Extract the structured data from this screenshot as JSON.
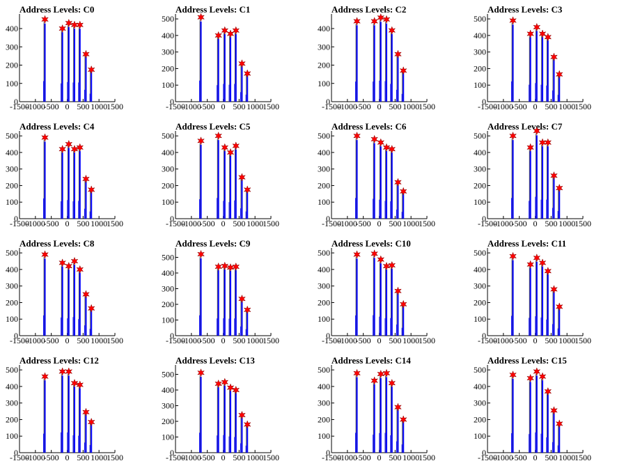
{
  "title_prefix": "Address Levels: ",
  "colors": {
    "histogram": "#0000ff",
    "peak_marker": "#ff0000",
    "marker_outline": "#800000",
    "axis": "#000000"
  },
  "axes": {
    "xlim": [
      -1500,
      1500
    ],
    "xticks": [
      "-1500",
      "-1000",
      "-500",
      "0",
      "500",
      "1000",
      "1500"
    ],
    "grid": false
  },
  "chart_data": [
    {
      "type": "bar",
      "title": "Address Levels: C0",
      "ylim": [
        0,
        480
      ],
      "yticks": [
        "0",
        "100",
        "200",
        "300",
        "400"
      ],
      "peaks": [
        {
          "x": -700,
          "y": 450
        },
        {
          "x": -150,
          "y": 400
        },
        {
          "x": 50,
          "y": 430
        },
        {
          "x": 230,
          "y": 420
        },
        {
          "x": 400,
          "y": 420
        },
        {
          "x": 590,
          "y": 260
        },
        {
          "x": 760,
          "y": 175
        }
      ]
    },
    {
      "type": "bar",
      "title": "Address Levels: C1",
      "ylim": [
        0,
        530
      ],
      "yticks": [
        "0",
        "100",
        "200",
        "300",
        "400",
        "500"
      ],
      "peaks": [
        {
          "x": -700,
          "y": 510
        },
        {
          "x": -150,
          "y": 400
        },
        {
          "x": 50,
          "y": 430
        },
        {
          "x": 230,
          "y": 410
        },
        {
          "x": 400,
          "y": 430
        },
        {
          "x": 590,
          "y": 230
        },
        {
          "x": 760,
          "y": 170
        }
      ]
    },
    {
      "type": "bar",
      "title": "Address Levels: C2",
      "ylim": [
        0,
        480
      ],
      "yticks": [
        "0",
        "100",
        "200",
        "300",
        "400"
      ],
      "peaks": [
        {
          "x": -700,
          "y": 440
        },
        {
          "x": -150,
          "y": 440
        },
        {
          "x": 50,
          "y": 460
        },
        {
          "x": 230,
          "y": 450
        },
        {
          "x": 400,
          "y": 390
        },
        {
          "x": 590,
          "y": 260
        },
        {
          "x": 760,
          "y": 170
        }
      ]
    },
    {
      "type": "bar",
      "title": "Address Levels: C3",
      "ylim": [
        0,
        530
      ],
      "yticks": [
        "0",
        "100",
        "200",
        "300",
        "400",
        "500"
      ],
      "peaks": [
        {
          "x": -700,
          "y": 490
        },
        {
          "x": -150,
          "y": 410
        },
        {
          "x": 50,
          "y": 450
        },
        {
          "x": 230,
          "y": 410
        },
        {
          "x": 400,
          "y": 390
        },
        {
          "x": 590,
          "y": 270
        },
        {
          "x": 760,
          "y": 165
        }
      ]
    },
    {
      "type": "bar",
      "title": "Address Levels: C4",
      "ylim": [
        0,
        530
      ],
      "yticks": [
        "0",
        "100",
        "200",
        "300",
        "400",
        "500"
      ],
      "peaks": [
        {
          "x": -700,
          "y": 490
        },
        {
          "x": -150,
          "y": 420
        },
        {
          "x": 50,
          "y": 450
        },
        {
          "x": 230,
          "y": 420
        },
        {
          "x": 400,
          "y": 430
        },
        {
          "x": 590,
          "y": 240
        },
        {
          "x": 760,
          "y": 175
        }
      ]
    },
    {
      "type": "bar",
      "title": "Address Levels: C5",
      "ylim": [
        0,
        530
      ],
      "yticks": [
        "0",
        "100",
        "200",
        "300",
        "400",
        "500"
      ],
      "peaks": [
        {
          "x": -700,
          "y": 470
        },
        {
          "x": -150,
          "y": 500
        },
        {
          "x": 50,
          "y": 430
        },
        {
          "x": 230,
          "y": 400
        },
        {
          "x": 400,
          "y": 440
        },
        {
          "x": 590,
          "y": 250
        },
        {
          "x": 760,
          "y": 175
        }
      ]
    },
    {
      "type": "bar",
      "title": "Address Levels: C6",
      "ylim": [
        0,
        530
      ],
      "yticks": [
        "0",
        "100",
        "200",
        "300",
        "400",
        "500"
      ],
      "peaks": [
        {
          "x": -700,
          "y": 500
        },
        {
          "x": -150,
          "y": 480
        },
        {
          "x": 50,
          "y": 460
        },
        {
          "x": 230,
          "y": 430
        },
        {
          "x": 400,
          "y": 420
        },
        {
          "x": 590,
          "y": 220
        },
        {
          "x": 760,
          "y": 165
        }
      ]
    },
    {
      "type": "bar",
      "title": "Address Levels: C7",
      "ylim": [
        0,
        530
      ],
      "yticks": [
        "0",
        "100",
        "200",
        "300",
        "400",
        "500"
      ],
      "peaks": [
        {
          "x": -700,
          "y": 500
        },
        {
          "x": -150,
          "y": 430
        },
        {
          "x": 50,
          "y": 530
        },
        {
          "x": 230,
          "y": 460
        },
        {
          "x": 400,
          "y": 460
        },
        {
          "x": 590,
          "y": 260
        },
        {
          "x": 760,
          "y": 185
        }
      ]
    },
    {
      "type": "bar",
      "title": "Address Levels: C8",
      "ylim": [
        0,
        530
      ],
      "yticks": [
        "0",
        "100",
        "200",
        "300",
        "400",
        "500"
      ],
      "peaks": [
        {
          "x": -700,
          "y": 490
        },
        {
          "x": -150,
          "y": 440
        },
        {
          "x": 50,
          "y": 420
        },
        {
          "x": 230,
          "y": 450
        },
        {
          "x": 400,
          "y": 400
        },
        {
          "x": 590,
          "y": 250
        },
        {
          "x": 760,
          "y": 165
        }
      ]
    },
    {
      "type": "bar",
      "title": "Address Levels: C9",
      "ylim": [
        0,
        560
      ],
      "yticks": [
        "0",
        "100",
        "200",
        "300",
        "400",
        "500"
      ],
      "peaks": [
        {
          "x": -700,
          "y": 520
        },
        {
          "x": -150,
          "y": 440
        },
        {
          "x": 50,
          "y": 445
        },
        {
          "x": 230,
          "y": 435
        },
        {
          "x": 400,
          "y": 440
        },
        {
          "x": 590,
          "y": 235
        },
        {
          "x": 760,
          "y": 165
        }
      ]
    },
    {
      "type": "bar",
      "title": "Address Levels: C10",
      "ylim": [
        0,
        530
      ],
      "yticks": [
        "0",
        "100",
        "200",
        "300",
        "400",
        "500"
      ],
      "peaks": [
        {
          "x": -700,
          "y": 490
        },
        {
          "x": -150,
          "y": 495
        },
        {
          "x": 50,
          "y": 460
        },
        {
          "x": 230,
          "y": 420
        },
        {
          "x": 400,
          "y": 425
        },
        {
          "x": 590,
          "y": 270
        },
        {
          "x": 760,
          "y": 190
        }
      ]
    },
    {
      "type": "bar",
      "title": "Address Levels: C11",
      "ylim": [
        0,
        530
      ],
      "yticks": [
        "0",
        "100",
        "200",
        "300",
        "400",
        "500"
      ],
      "peaks": [
        {
          "x": -700,
          "y": 480
        },
        {
          "x": -150,
          "y": 430
        },
        {
          "x": 50,
          "y": 470
        },
        {
          "x": 230,
          "y": 440
        },
        {
          "x": 400,
          "y": 390
        },
        {
          "x": 590,
          "y": 280
        },
        {
          "x": 760,
          "y": 175
        }
      ]
    },
    {
      "type": "bar",
      "title": "Address Levels: C12",
      "ylim": [
        0,
        530
      ],
      "yticks": [
        "0",
        "100",
        "200",
        "300",
        "400",
        "500"
      ],
      "peaks": [
        {
          "x": -700,
          "y": 460
        },
        {
          "x": -150,
          "y": 490
        },
        {
          "x": 50,
          "y": 490
        },
        {
          "x": 230,
          "y": 420
        },
        {
          "x": 400,
          "y": 410
        },
        {
          "x": 590,
          "y": 245
        },
        {
          "x": 760,
          "y": 185
        }
      ]
    },
    {
      "type": "bar",
      "title": "Address Levels: C13",
      "ylim": [
        0,
        560
      ],
      "yticks": [
        "0",
        "100",
        "200",
        "300",
        "400",
        "500"
      ],
      "peaks": [
        {
          "x": -700,
          "y": 510
        },
        {
          "x": -150,
          "y": 440
        },
        {
          "x": 50,
          "y": 450
        },
        {
          "x": 230,
          "y": 415
        },
        {
          "x": 400,
          "y": 400
        },
        {
          "x": 590,
          "y": 240
        },
        {
          "x": 760,
          "y": 180
        }
      ]
    },
    {
      "type": "bar",
      "title": "Address Levels: C14",
      "ylim": [
        0,
        530
      ],
      "yticks": [
        "0",
        "100",
        "200",
        "300",
        "400",
        "500"
      ],
      "peaks": [
        {
          "x": -700,
          "y": 480
        },
        {
          "x": -150,
          "y": 435
        },
        {
          "x": 50,
          "y": 475
        },
        {
          "x": 230,
          "y": 480
        },
        {
          "x": 400,
          "y": 420
        },
        {
          "x": 590,
          "y": 275
        },
        {
          "x": 760,
          "y": 200
        }
      ]
    },
    {
      "type": "bar",
      "title": "Address Levels: C15",
      "ylim": [
        0,
        530
      ],
      "yticks": [
        "0",
        "100",
        "200",
        "300",
        "400",
        "500"
      ],
      "peaks": [
        {
          "x": -700,
          "y": 470
        },
        {
          "x": -150,
          "y": 450
        },
        {
          "x": 50,
          "y": 490
        },
        {
          "x": 230,
          "y": 460
        },
        {
          "x": 400,
          "y": 370
        },
        {
          "x": 590,
          "y": 255
        },
        {
          "x": 760,
          "y": 175
        }
      ]
    }
  ]
}
